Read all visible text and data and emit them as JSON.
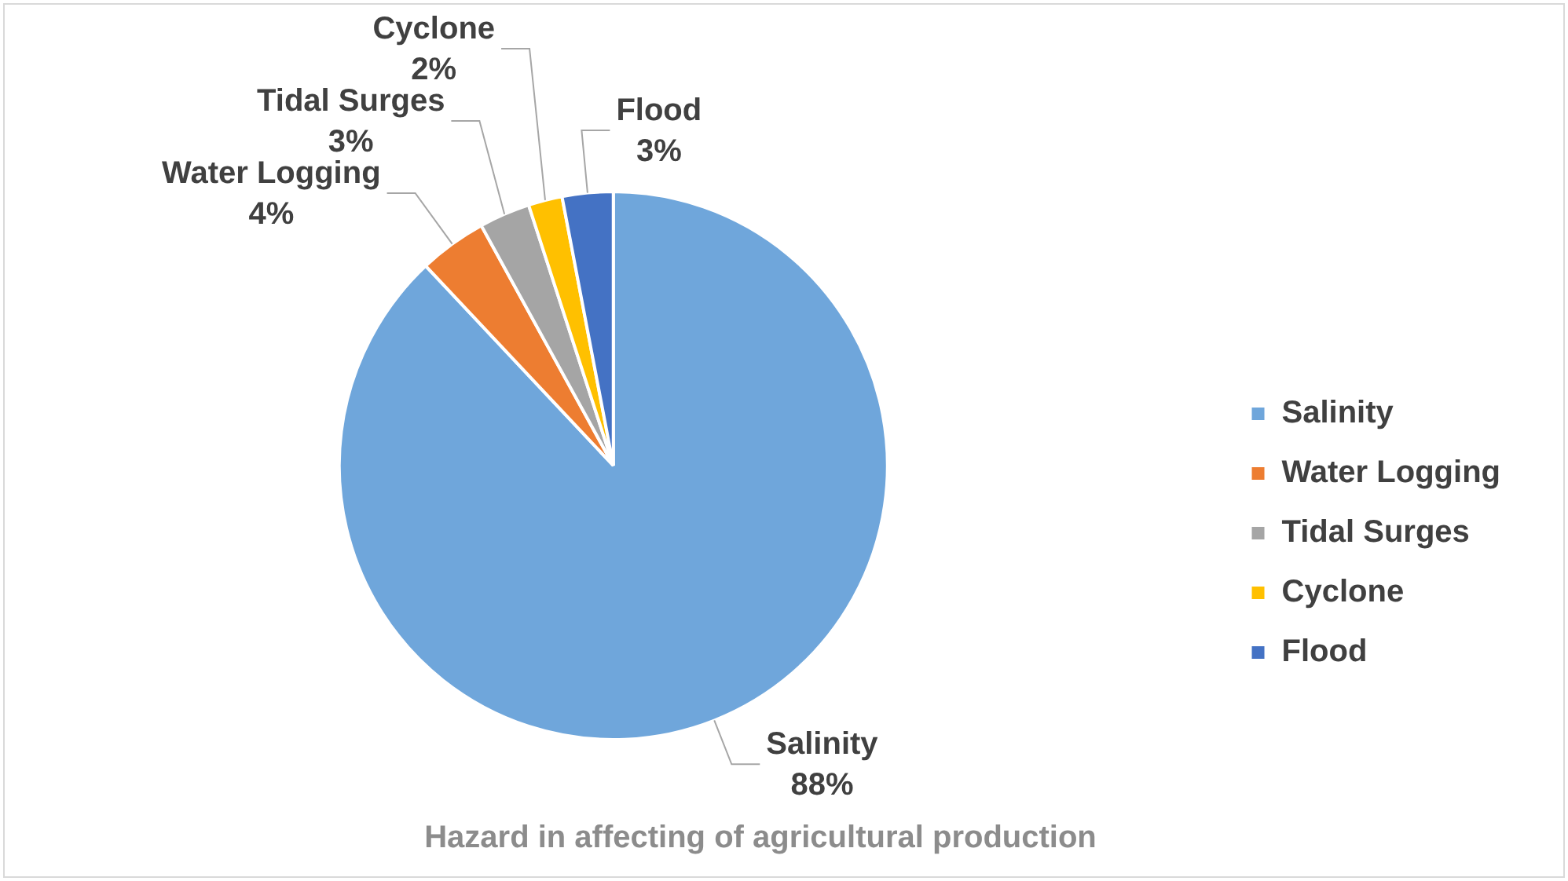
{
  "chart_data": {
    "type": "pie",
    "title": "Hazard in affecting of agricultural production",
    "categories": [
      "Salinity",
      "Water Logging",
      "Tidal Surges",
      "Cyclone",
      "Flood"
    ],
    "values": [
      88,
      4,
      3,
      2,
      3
    ],
    "value_labels": [
      "88%",
      "4%",
      "3%",
      "2%",
      "3%"
    ],
    "colors": [
      "#6fa6db",
      "#ed7d31",
      "#a5a5a5",
      "#ffc000",
      "#4472c4"
    ],
    "legend": "right"
  }
}
